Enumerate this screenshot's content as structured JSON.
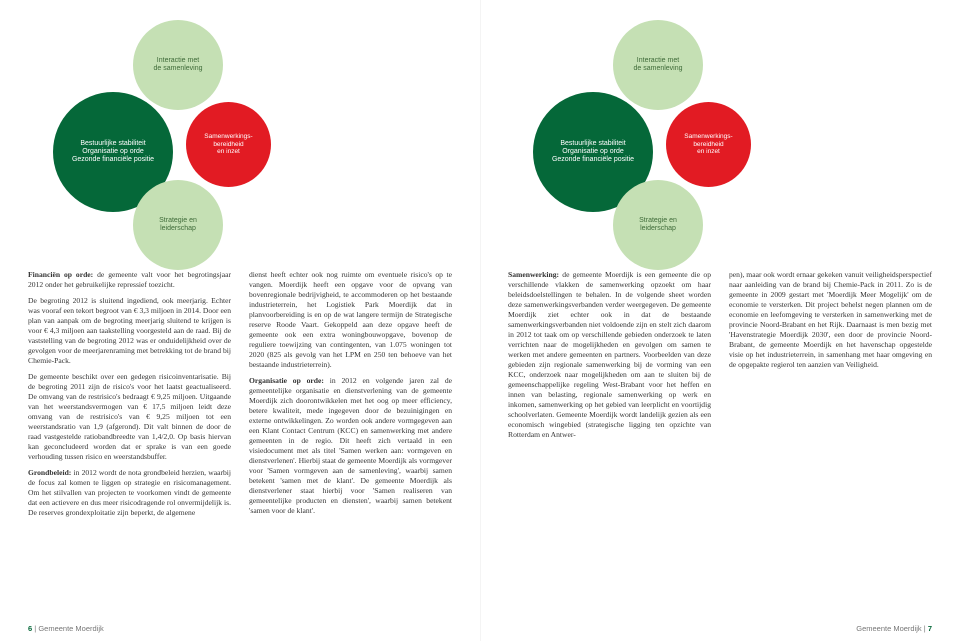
{
  "diagram": {
    "top": "Interactie met\nde samenleving",
    "midLeft": "Bestuurlijke stabiliteit\nOrganisatie op orde\nGezonde financiële positie",
    "midRight": "Samenwerkings-\nbereidheid\nen inzet",
    "bot": "Strategie en\nleiderschap",
    "colors": {
      "top": "#c5e0b4",
      "midLeft": "#056839",
      "midRight": "#e21b23",
      "bot": "#c5e0b4"
    }
  },
  "leftPage": {
    "para1Lead": "Financiën op orde:",
    "para1": " de gemeente valt voor het begrotingsjaar 2012 onder het gebruikelijke re­pressief toezicht.",
    "para2": "De begroting 2012 is sluitend ingediend, ook meerjarig. Echter was vooraf een tekort begroot van € 3,3 miljoen in 2014. Door een plan van aanpak om de begroting meerjarig sluitend te krijgen is voor € 4,3 miljoen aan taakstelling voorgesteld aan de raad. Bij de vaststelling van de begroting 2012 was er onduidelijkheid over de gevolgen voor de meerjarenraming met be­trekking tot de brand bij Chemie-Pack.",
    "para3": "De gemeente beschikt over een gedegen risico­inventarisatie. Bij de begroting 2011 zijn de risi­co's voor het laatst geactualiseerd. De omvang van de restrisico's bedraagt € 9,25 miljoen. Uit­gaande van het weerstandsvermogen van € 17,5 miljoen leidt deze omvang van de restrisico's van € 9,25 miljoen tot een weerstandsratio van 1,9 (afgerond). Dit valt binnen de door de raad vastgestelde ratiobandbreedte van 1,4/2,0. Op basis hiervan kan geconcludeerd worden dat er sprake is van een goede verhouding tussen risi­co en weerstandsbuffer.",
    "para4Lead": "Grondbeleid:",
    "para4": " in 2012 wordt de nota grondbeleid herzien, waarbij de focus zal komen te liggen op strategie en risicomanagement. Om het stilval­len van projecten te voorkomen vindt de ge­meente dat een actievere en dus meer risicodra­gende rol onvermijdelijk is. De reserves grondexploitatie zijn beperkt, de algemene",
    "para5": "dienst heeft echter ook nog ruimte om eventu­ele risico's op te vangen. Moerdijk heeft een op­gave voor de opvang van bovenregionale bedrij­vigheid, te accommoderen op het bestaande industrieterrein, het Logistiek Park Moerdijk dat in planvoorbereiding is en op de wat langere termijn de Strategische reserve Roode Vaart. Gekoppeld aan deze opgave heeft de gemeente ook een extra woningbouwopgave, bovenop de reguliere toewijzing van contingenten, van 1.075 woningen tot 2020 (825 als gevolg van het LPM en 250 ten behoeve van het bestaande industrieterrein).",
    "para6Lead": "Organisatie op orde:",
    "para6": " in 2012 en volgende jaren zal de gemeentelijke organisatie en dienstverle­ning van de gemeente Moerdijk zich dooront­wikkelen met het oog op meer efficiency, betere kwaliteit, mede ingegeven door de bezuinigin­gen en externe ontwikkelingen. Zo worden ook andere vormgegeven aan een Klant Contact Centrum (KCC) en samenwerking met andere gemeenten in de regio. Dit heeft zich vertaald in een visiedocument met als titel 'Samen werken aan: vormgeven en dienstverlenen'. Hierbij staat de gemeente Moerdijk als vormgever voor 'Samen vormgeven aan de samenleving', waar­bij samen betekent 'samen met de klant'. De ge­meente Moerdijk als dienstverlener staat hierbij voor 'Samen realiseren van gemeentelijke pro­ducten en diensten', waarbij samen betekent 'samen voor de klant'."
  },
  "rightPage": {
    "para1Lead": "Samenwerking:",
    "para1": " de gemeente Moerdijk is een gemeente die op verschillende vlakken de sa­menwerking opzoekt om haar beleidsdoelstel­lingen te behalen. In de volgende sheet worden deze samenwerkingsverbanden verder weerge­geven. De gemeente Moerdijk ziet echter ook in dat de bestaande samenwerkingsverbanden niet voldoende zijn en stelt zich daarom in 2012 tot taak om op verschillende gebieden onder­zoek te laten verrichten naar de mogelijkheden en gevolgen om samen te werken met andere gemeenten en partners. Voorbeelden van deze gebieden zijn regionale samenwerking bij de vorming van een KCC, onderzoek naar mogelijk­heden om aan te sluiten bij de gemeenschappe­lijke regeling West-Brabant voor het heffen en innen van belasting, regionale samenwerking op werk en inkomen, samenwerking op het ge­bied van leerplicht en voortijdig schoolverlaten. Gemeente Moerdijk wordt landelijk gezien als een economisch wingebied (strategische lig­ging ten opzichte van Rotterdam en Antwer-",
    "para2": "pen), maar ook wordt ernaar gekeken vanuit veiligheidsperspectief naar aanleiding van de brand bij Chemie-Pack in 2011. Zo is de gemeente in 2009 gestart met 'Moerdijk Meer Mogelijk' om de economie te versterken. Dit project be­helst negen plannen om de economie en leefom­geving te versterken in samenwerking met de provincie Noord-Brabant en het Rijk. Daarnaast is men bezig met 'Havenstrategie Moerdijk 2030', een door de provincie Noord-Brabant, de gemeente Moerdijk en het havenschap opge­stelde visie op het industrieterrein, in samen­hang met haar omgeving en de opgepakte re­gierol ten aanzien van Veiligheid."
  },
  "footer": {
    "leftNum": "6",
    "rightNum": "7",
    "org": "Gemeente Moerdijk"
  }
}
